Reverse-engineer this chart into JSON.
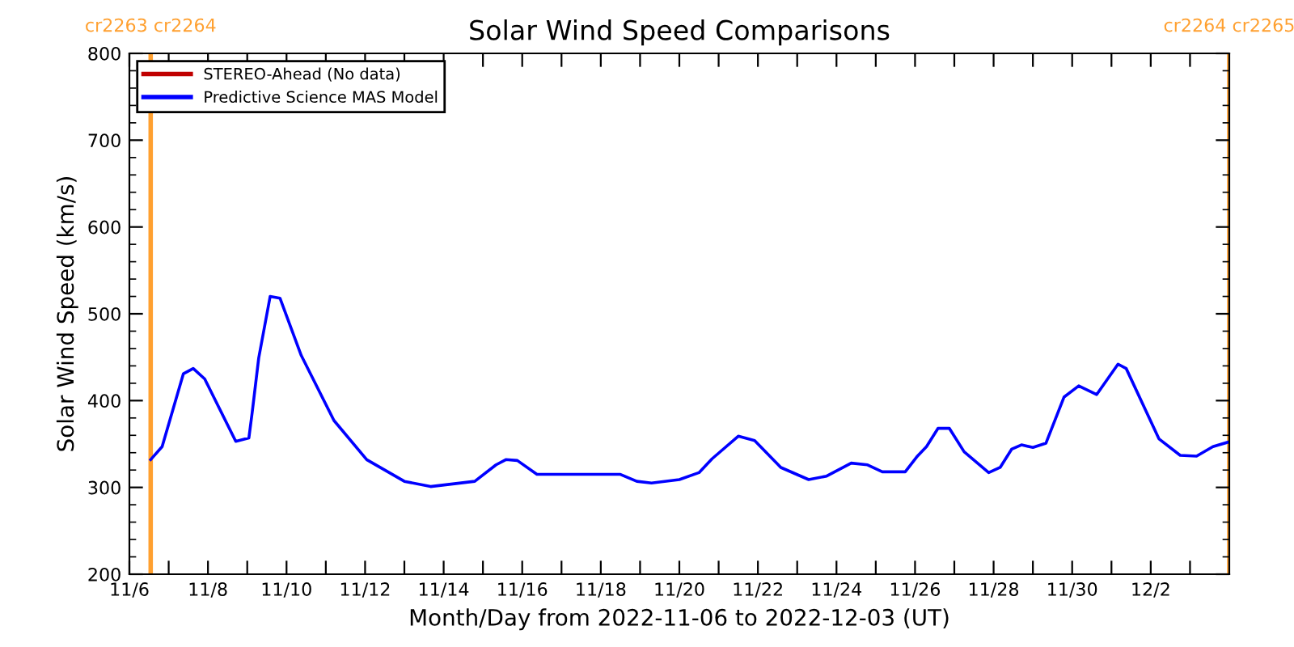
{
  "chart_data": {
    "type": "line",
    "title": "Solar Wind Speed Comparisons",
    "xlabel": "Month/Day from 2022-11-06 to 2022-12-03 (UT)",
    "ylabel": "Solar Wind Speed (km/s)",
    "xlim": [
      "2022-11-06",
      "2022-12-04"
    ],
    "ylim": [
      200,
      800
    ],
    "yticks": [
      200,
      300,
      400,
      500,
      600,
      700,
      800
    ],
    "xticks": [
      {
        "value": "2022-11-06",
        "label": "11/6"
      },
      {
        "value": "2022-11-07",
        "label": null
      },
      {
        "value": "2022-11-08",
        "label": "11/8"
      },
      {
        "value": "2022-11-09",
        "label": null
      },
      {
        "value": "2022-11-10",
        "label": "11/10"
      },
      {
        "value": "2022-11-11",
        "label": null
      },
      {
        "value": "2022-11-12",
        "label": "11/12"
      },
      {
        "value": "2022-11-13",
        "label": null
      },
      {
        "value": "2022-11-14",
        "label": "11/14"
      },
      {
        "value": "2022-11-15",
        "label": null
      },
      {
        "value": "2022-11-16",
        "label": "11/16"
      },
      {
        "value": "2022-11-17",
        "label": null
      },
      {
        "value": "2022-11-18",
        "label": "11/18"
      },
      {
        "value": "2022-11-19",
        "label": null
      },
      {
        "value": "2022-11-20",
        "label": "11/20"
      },
      {
        "value": "2022-11-21",
        "label": null
      },
      {
        "value": "2022-11-22",
        "label": "11/22"
      },
      {
        "value": "2022-11-23",
        "label": null
      },
      {
        "value": "2022-11-24",
        "label": "11/24"
      },
      {
        "value": "2022-11-25",
        "label": null
      },
      {
        "value": "2022-11-26",
        "label": "11/26"
      },
      {
        "value": "2022-11-27",
        "label": null
      },
      {
        "value": "2022-11-28",
        "label": "11/28"
      },
      {
        "value": "2022-11-29",
        "label": null
      },
      {
        "value": "2022-11-30",
        "label": "11/30"
      },
      {
        "value": "2022-12-01",
        "label": null
      },
      {
        "value": "2022-12-02",
        "label": "12/2"
      },
      {
        "value": "2022-12-03",
        "label": null
      }
    ],
    "grid": false,
    "legend": "top left",
    "line_style": "solid",
    "marker": "none",
    "ref_lines": [
      {
        "axis": "x",
        "value": "2022-11-06T13:00",
        "label": "cr2263 cr2264",
        "color": "#ffa030"
      },
      {
        "axis": "x",
        "value": "2022-12-03T23:59",
        "label": "cr2264 cr2265",
        "color": "#ffa030"
      }
    ],
    "series": [
      {
        "name": "STEREO-Ahead (No data)",
        "color": "#c00000"
      },
      {
        "name": "Predictive Science MAS Model",
        "color": "#0000ff",
        "x": [
          "2022-11-06T13:00",
          "2022-11-06T20:00",
          "2022-11-07T09:00",
          "2022-11-07T15:00",
          "2022-11-07T22:00",
          "2022-11-08T17:00",
          "2022-11-09T01:00",
          "2022-11-09T03:00",
          "2022-11-09T07:00",
          "2022-11-09T14:00",
          "2022-11-09T20:00",
          "2022-11-10T09:00",
          "2022-11-11T05:00",
          "2022-11-12T01:00",
          "2022-11-13T00:00",
          "2022-11-13T16:00",
          "2022-11-14T19:00",
          "2022-11-15T08:00",
          "2022-11-15T14:00",
          "2022-11-15T21:00",
          "2022-11-16T09:00",
          "2022-11-16T23:00",
          "2022-11-18T12:00",
          "2022-11-18T22:00",
          "2022-11-19T07:00",
          "2022-11-20T00:00",
          "2022-11-20T12:00",
          "2022-11-20T20:00",
          "2022-11-21T12:00",
          "2022-11-21T22:00",
          "2022-11-22T14:00",
          "2022-11-23T07:00",
          "2022-11-23T18:00",
          "2022-11-24T09:00",
          "2022-11-24T19:00",
          "2022-11-25T04:00",
          "2022-11-25T18:00",
          "2022-11-26T01:00",
          "2022-11-26T07:00",
          "2022-11-26T14:00",
          "2022-11-26T21:00",
          "2022-11-27T06:00",
          "2022-11-27T21:00",
          "2022-11-28T04:00",
          "2022-11-28T11:00",
          "2022-11-28T17:00",
          "2022-11-29T00:00",
          "2022-11-29T08:00",
          "2022-11-29T19:00",
          "2022-11-30T04:00",
          "2022-11-30T15:00",
          "2022-12-01T04:00",
          "2022-12-01T09:00",
          "2022-12-02T05:00",
          "2022-12-02T18:00",
          "2022-12-03T04:00",
          "2022-12-03T14:00",
          "2022-12-03T23:00"
        ],
        "values": [
          332,
          347,
          431,
          437,
          425,
          353,
          357,
          386,
          449,
          520,
          518,
          452,
          377,
          332,
          307,
          301,
          307,
          326,
          332,
          331,
          315,
          315,
          315,
          307,
          305,
          309,
          317,
          333,
          359,
          354,
          323,
          309,
          313,
          328,
          326,
          318,
          318,
          335,
          347,
          368,
          368,
          341,
          317,
          323,
          344,
          349,
          346,
          351,
          404,
          417,
          407,
          442,
          437,
          356,
          337,
          336,
          347,
          352
        ]
      }
    ]
  }
}
